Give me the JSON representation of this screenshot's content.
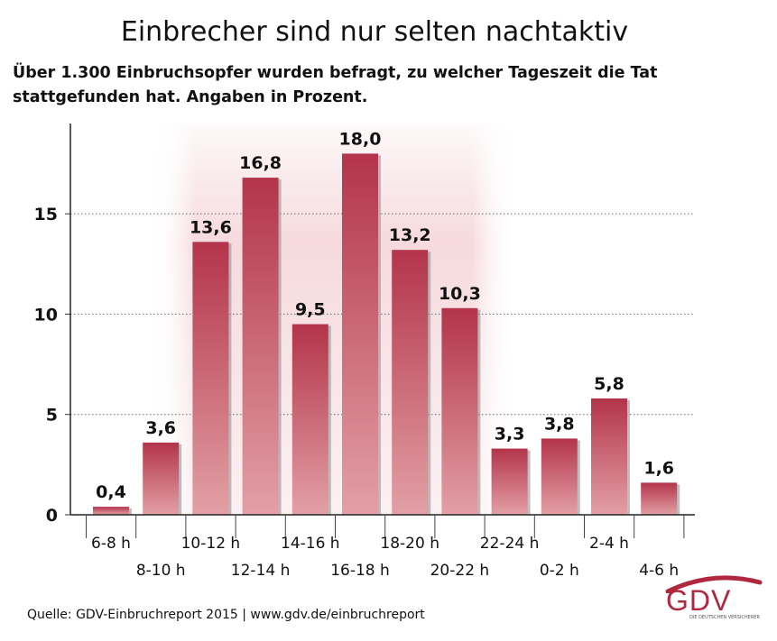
{
  "title": "Einbrecher sind nur selten nachtaktiv",
  "subtitle": "Über 1.300 Einbruchsopfer wurden befragt, zu welcher Tageszeit die Tat stattgefunden hat. Angaben in Prozent.",
  "source": "Quelle: GDV-Einbruchreport 2015 | www.gdv.de/einbruchreport",
  "logo": {
    "text": "GDV",
    "tagline": "DIE DEUTSCHEN VERSICHERER"
  },
  "colors": {
    "bar_dark": "#b3344b",
    "bar_light": "#dc8f96",
    "highlight_band": "#f6dadd",
    "logo": "#b0283f"
  },
  "chart_data": {
    "type": "bar",
    "categories": [
      "6-8 h",
      "8-10 h",
      "10-12 h",
      "12-14 h",
      "14-16 h",
      "16-18 h",
      "18-20 h",
      "20-22 h",
      "22-24 h",
      "0-2 h",
      "2-4 h",
      "4-6 h"
    ],
    "values": [
      0.4,
      3.6,
      13.6,
      16.8,
      9.5,
      18.0,
      13.2,
      10.3,
      3.3,
      3.8,
      5.8,
      1.6
    ],
    "value_labels": [
      "0,4",
      "3,6",
      "13,6",
      "16,8",
      "9,5",
      "18,0",
      "13,2",
      "10,3",
      "3,3",
      "3,8",
      "5,8",
      "1,6"
    ],
    "title": "Einbrecher sind nur selten nachtaktiv",
    "xlabel": "",
    "ylabel": "",
    "ylim": [
      0,
      19.5
    ],
    "yticks": [
      0,
      5,
      10,
      15
    ],
    "grid": true,
    "highlight_range": [
      "10-12 h",
      "20-22 h"
    ]
  }
}
